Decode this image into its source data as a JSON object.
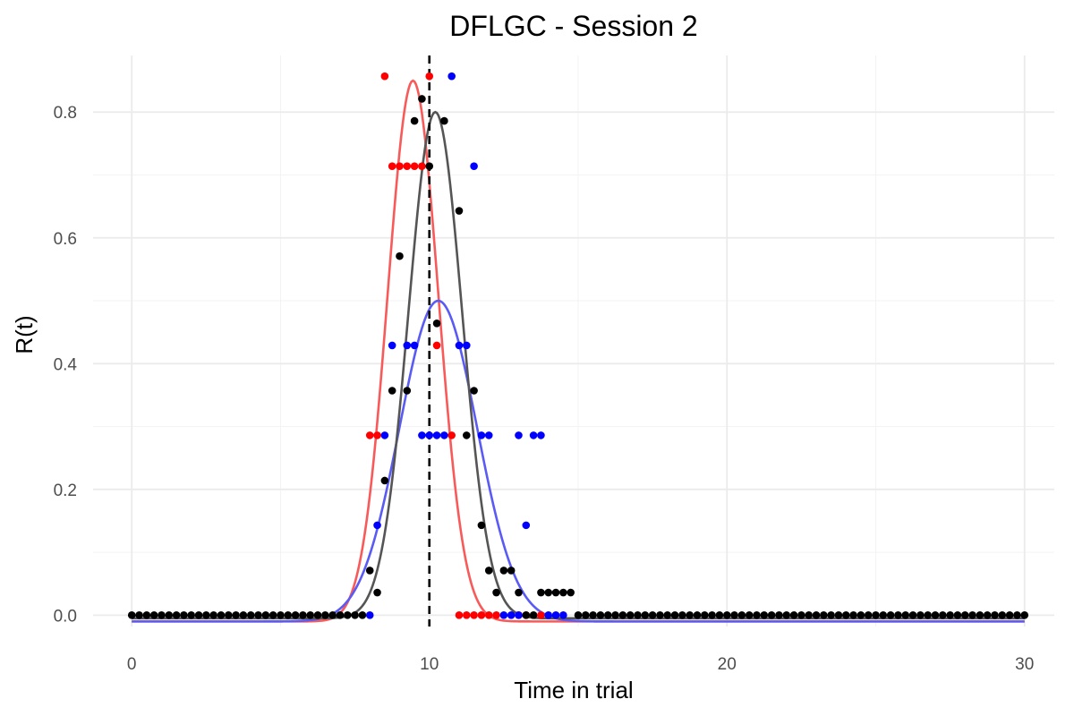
{
  "chart_data": {
    "type": "scatter",
    "title": "DFLGC - Session 2",
    "xlabel": "Time in trial",
    "ylabel": "R(t)",
    "xlim": [
      -1.3,
      31.0
    ],
    "ylim": [
      -0.018,
      0.89
    ],
    "x_ticks": [
      0,
      10,
      20,
      30
    ],
    "x_tick_labels": [
      "0",
      "10",
      "20",
      "30"
    ],
    "y_ticks": [
      0.0,
      0.2,
      0.4,
      0.6,
      0.8
    ],
    "y_tick_labels": [
      "0.0",
      "0.2",
      "0.4",
      "0.6",
      "0.8"
    ],
    "grid": true,
    "reference_line": {
      "x": 10,
      "style": "dashed",
      "color": "#000000"
    },
    "series": [
      {
        "color": "#ff0000",
        "curve_color": "#f85a5a",
        "points": [
          {
            "x": 8.5,
            "y": 0.857
          },
          {
            "x": 8.0,
            "y": 0.286
          },
          {
            "x": 8.25,
            "y": 0.286
          },
          {
            "x": 8.75,
            "y": 0.714
          },
          {
            "x": 9.0,
            "y": 0.714
          },
          {
            "x": 9.25,
            "y": 0.714
          },
          {
            "x": 9.5,
            "y": 0.714
          },
          {
            "x": 9.75,
            "y": 0.714
          },
          {
            "x": 10.0,
            "y": 0.857
          },
          {
            "x": 10.25,
            "y": 0.429
          },
          {
            "x": 10.75,
            "y": 0.286
          },
          {
            "x": 11.0,
            "y": 0.0
          },
          {
            "x": 11.25,
            "y": 0.0
          },
          {
            "x": 11.5,
            "y": 0.0
          },
          {
            "x": 11.75,
            "y": 0.0
          },
          {
            "x": 12.0,
            "y": 0.0
          },
          {
            "x": 12.25,
            "y": 0.0
          },
          {
            "x": 13.0,
            "y": 0.0
          },
          {
            "x": 13.25,
            "y": 0.0
          },
          {
            "x": 13.75,
            "y": 0.0
          }
        ],
        "fit": {
          "peak": 9.45,
          "height": 0.85,
          "sigma": 0.85,
          "baseline": -0.01
        }
      },
      {
        "color": "#0000ff",
        "curve_color": "#5a5af5",
        "points": [
          {
            "x": 10.75,
            "y": 0.857
          },
          {
            "x": 11.5,
            "y": 0.714
          },
          {
            "x": 8.75,
            "y": 0.429
          },
          {
            "x": 9.25,
            "y": 0.429
          },
          {
            "x": 9.5,
            "y": 0.429
          },
          {
            "x": 11.0,
            "y": 0.429
          },
          {
            "x": 11.25,
            "y": 0.429
          },
          {
            "x": 8.5,
            "y": 0.286
          },
          {
            "x": 9.75,
            "y": 0.286
          },
          {
            "x": 10.0,
            "y": 0.286
          },
          {
            "x": 10.25,
            "y": 0.286
          },
          {
            "x": 10.5,
            "y": 0.286
          },
          {
            "x": 11.75,
            "y": 0.286
          },
          {
            "x": 12.0,
            "y": 0.286
          },
          {
            "x": 13.0,
            "y": 0.286
          },
          {
            "x": 13.5,
            "y": 0.286
          },
          {
            "x": 13.75,
            "y": 0.286
          },
          {
            "x": 8.25,
            "y": 0.143
          },
          {
            "x": 13.25,
            "y": 0.143
          },
          {
            "x": 8.0,
            "y": 0.0
          },
          {
            "x": 12.5,
            "y": 0.0
          },
          {
            "x": 12.75,
            "y": 0.0
          },
          {
            "x": 13.0,
            "y": 0.0
          },
          {
            "x": 14.0,
            "y": 0.0
          },
          {
            "x": 14.25,
            "y": 0.0
          },
          {
            "x": 14.5,
            "y": 0.0
          }
        ],
        "fit": {
          "peak": 10.3,
          "height": 0.5,
          "sigma": 1.3,
          "baseline": -0.01
        }
      },
      {
        "color": "#000000",
        "curve_color": "#555555",
        "points": [
          {
            "x": 0.0,
            "y": 0.0
          },
          {
            "x": 0.25,
            "y": 0.0
          },
          {
            "x": 0.5,
            "y": 0.0
          },
          {
            "x": 0.75,
            "y": 0.0
          },
          {
            "x": 1.0,
            "y": 0.0
          },
          {
            "x": 1.25,
            "y": 0.0
          },
          {
            "x": 1.5,
            "y": 0.0
          },
          {
            "x": 1.75,
            "y": 0.0
          },
          {
            "x": 2.0,
            "y": 0.0
          },
          {
            "x": 2.25,
            "y": 0.0
          },
          {
            "x": 2.5,
            "y": 0.0
          },
          {
            "x": 2.75,
            "y": 0.0
          },
          {
            "x": 3.0,
            "y": 0.0
          },
          {
            "x": 3.25,
            "y": 0.0
          },
          {
            "x": 3.5,
            "y": 0.0
          },
          {
            "x": 3.75,
            "y": 0.0
          },
          {
            "x": 4.0,
            "y": 0.0
          },
          {
            "x": 4.25,
            "y": 0.0
          },
          {
            "x": 4.5,
            "y": 0.0
          },
          {
            "x": 4.75,
            "y": 0.0
          },
          {
            "x": 5.0,
            "y": 0.0
          },
          {
            "x": 5.25,
            "y": 0.0
          },
          {
            "x": 5.5,
            "y": 0.0
          },
          {
            "x": 5.75,
            "y": 0.0
          },
          {
            "x": 6.0,
            "y": 0.0
          },
          {
            "x": 6.25,
            "y": 0.0
          },
          {
            "x": 6.5,
            "y": 0.0
          },
          {
            "x": 6.75,
            "y": 0.0
          },
          {
            "x": 7.0,
            "y": 0.0
          },
          {
            "x": 7.25,
            "y": 0.0
          },
          {
            "x": 7.5,
            "y": 0.0
          },
          {
            "x": 7.75,
            "y": 0.0
          },
          {
            "x": 8.0,
            "y": 0.071
          },
          {
            "x": 8.25,
            "y": 0.036
          },
          {
            "x": 8.5,
            "y": 0.214
          },
          {
            "x": 8.75,
            "y": 0.357
          },
          {
            "x": 9.0,
            "y": 0.571
          },
          {
            "x": 9.25,
            "y": 0.357
          },
          {
            "x": 9.5,
            "y": 0.786
          },
          {
            "x": 9.75,
            "y": 0.821
          },
          {
            "x": 10.0,
            "y": 0.714
          },
          {
            "x": 10.25,
            "y": 0.464
          },
          {
            "x": 10.5,
            "y": 0.786
          },
          {
            "x": 11.0,
            "y": 0.643
          },
          {
            "x": 11.25,
            "y": 0.286
          },
          {
            "x": 11.5,
            "y": 0.357
          },
          {
            "x": 11.75,
            "y": 0.143
          },
          {
            "x": 12.0,
            "y": 0.071
          },
          {
            "x": 12.25,
            "y": 0.036
          },
          {
            "x": 12.5,
            "y": 0.071
          },
          {
            "x": 12.75,
            "y": 0.071
          },
          {
            "x": 13.0,
            "y": 0.036
          },
          {
            "x": 13.25,
            "y": 0.0
          },
          {
            "x": 13.5,
            "y": 0.0
          },
          {
            "x": 13.75,
            "y": 0.036
          },
          {
            "x": 14.0,
            "y": 0.036
          },
          {
            "x": 14.25,
            "y": 0.036
          },
          {
            "x": 14.5,
            "y": 0.036
          },
          {
            "x": 14.75,
            "y": 0.036
          },
          {
            "x": 15.0,
            "y": 0.0
          },
          {
            "x": 15.25,
            "y": 0.0
          },
          {
            "x": 15.5,
            "y": 0.0
          },
          {
            "x": 15.75,
            "y": 0.0
          },
          {
            "x": 16.0,
            "y": 0.0
          },
          {
            "x": 16.25,
            "y": 0.0
          },
          {
            "x": 16.5,
            "y": 0.0
          },
          {
            "x": 16.75,
            "y": 0.0
          },
          {
            "x": 17.0,
            "y": 0.0
          },
          {
            "x": 17.25,
            "y": 0.0
          },
          {
            "x": 17.5,
            "y": 0.0
          },
          {
            "x": 17.75,
            "y": 0.0
          },
          {
            "x": 18.0,
            "y": 0.0
          },
          {
            "x": 18.25,
            "y": 0.0
          },
          {
            "x": 18.5,
            "y": 0.0
          },
          {
            "x": 18.75,
            "y": 0.0
          },
          {
            "x": 19.0,
            "y": 0.0
          },
          {
            "x": 19.25,
            "y": 0.0
          },
          {
            "x": 19.5,
            "y": 0.0
          },
          {
            "x": 19.75,
            "y": 0.0
          },
          {
            "x": 20.0,
            "y": 0.0
          },
          {
            "x": 20.25,
            "y": 0.0
          },
          {
            "x": 20.5,
            "y": 0.0
          },
          {
            "x": 20.75,
            "y": 0.0
          },
          {
            "x": 21.0,
            "y": 0.0
          },
          {
            "x": 21.25,
            "y": 0.0
          },
          {
            "x": 21.5,
            "y": 0.0
          },
          {
            "x": 21.75,
            "y": 0.0
          },
          {
            "x": 22.0,
            "y": 0.0
          },
          {
            "x": 22.25,
            "y": 0.0
          },
          {
            "x": 22.5,
            "y": 0.0
          },
          {
            "x": 22.75,
            "y": 0.0
          },
          {
            "x": 23.0,
            "y": 0.0
          },
          {
            "x": 23.25,
            "y": 0.0
          },
          {
            "x": 23.5,
            "y": 0.0
          },
          {
            "x": 23.75,
            "y": 0.0
          },
          {
            "x": 24.0,
            "y": 0.0
          },
          {
            "x": 24.25,
            "y": 0.0
          },
          {
            "x": 24.5,
            "y": 0.0
          },
          {
            "x": 24.75,
            "y": 0.0
          },
          {
            "x": 25.0,
            "y": 0.0
          },
          {
            "x": 25.25,
            "y": 0.0
          },
          {
            "x": 25.5,
            "y": 0.0
          },
          {
            "x": 25.75,
            "y": 0.0
          },
          {
            "x": 26.0,
            "y": 0.0
          },
          {
            "x": 26.25,
            "y": 0.0
          },
          {
            "x": 26.5,
            "y": 0.0
          },
          {
            "x": 26.75,
            "y": 0.0
          },
          {
            "x": 27.0,
            "y": 0.0
          },
          {
            "x": 27.25,
            "y": 0.0
          },
          {
            "x": 27.5,
            "y": 0.0
          },
          {
            "x": 27.75,
            "y": 0.0
          },
          {
            "x": 28.0,
            "y": 0.0
          },
          {
            "x": 28.25,
            "y": 0.0
          },
          {
            "x": 28.5,
            "y": 0.0
          },
          {
            "x": 28.75,
            "y": 0.0
          },
          {
            "x": 29.0,
            "y": 0.0
          },
          {
            "x": 29.25,
            "y": 0.0
          },
          {
            "x": 29.5,
            "y": 0.0
          },
          {
            "x": 29.75,
            "y": 0.0
          },
          {
            "x": 30.0,
            "y": 0.0
          }
        ],
        "fit": {
          "peak": 10.2,
          "height": 0.8,
          "sigma": 0.9,
          "baseline": -0.005
        }
      }
    ]
  }
}
